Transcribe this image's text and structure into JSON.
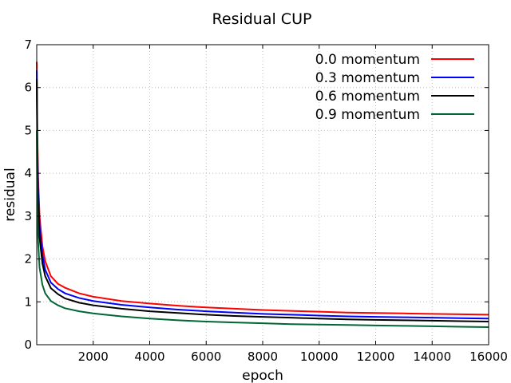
{
  "chart_data": {
    "type": "line",
    "title": "Residual CUP",
    "xlabel": "epoch",
    "ylabel": "residual",
    "xlim": [
      0,
      16000
    ],
    "ylim": [
      0,
      7
    ],
    "xticks": [
      2000,
      4000,
      6000,
      8000,
      10000,
      12000,
      14000,
      16000
    ],
    "yticks": [
      0,
      1,
      2,
      3,
      4,
      5,
      6,
      7
    ],
    "grid": true,
    "legend_position": "top-right",
    "series": [
      {
        "name": "0.0 momentum",
        "color": "#ff0000",
        "x": [
          1,
          20,
          50,
          100,
          200,
          300,
          500,
          750,
          1000,
          1500,
          2000,
          3000,
          4000,
          5000,
          6000,
          7000,
          8000,
          9000,
          10000,
          11000,
          12000,
          13000,
          14000,
          15000,
          16000
        ],
        "y": [
          6.6,
          5.0,
          3.9,
          3.0,
          2.3,
          1.95,
          1.6,
          1.42,
          1.33,
          1.2,
          1.12,
          1.02,
          0.96,
          0.91,
          0.87,
          0.84,
          0.81,
          0.79,
          0.77,
          0.75,
          0.74,
          0.73,
          0.72,
          0.71,
          0.7
        ]
      },
      {
        "name": "0.3 momentum",
        "color": "#0000ff",
        "x": [
          1,
          20,
          50,
          100,
          200,
          300,
          500,
          750,
          1000,
          1500,
          2000,
          3000,
          4000,
          5000,
          6000,
          7000,
          8000,
          9000,
          10000,
          11000,
          12000,
          13000,
          14000,
          15000,
          16000
        ],
        "y": [
          6.4,
          4.7,
          3.6,
          2.75,
          2.1,
          1.75,
          1.45,
          1.3,
          1.2,
          1.09,
          1.02,
          0.93,
          0.87,
          0.82,
          0.78,
          0.75,
          0.72,
          0.7,
          0.68,
          0.66,
          0.65,
          0.64,
          0.63,
          0.62,
          0.61
        ]
      },
      {
        "name": "0.6 momentum",
        "color": "#000000",
        "x": [
          1,
          20,
          50,
          100,
          200,
          300,
          500,
          750,
          1000,
          1500,
          2000,
          3000,
          4000,
          5000,
          6000,
          7000,
          8000,
          9000,
          10000,
          11000,
          12000,
          13000,
          14000,
          15000,
          16000
        ],
        "y": [
          6.2,
          4.4,
          3.3,
          2.5,
          1.9,
          1.6,
          1.32,
          1.18,
          1.08,
          0.98,
          0.92,
          0.84,
          0.78,
          0.74,
          0.7,
          0.67,
          0.65,
          0.63,
          0.61,
          0.59,
          0.58,
          0.57,
          0.56,
          0.55,
          0.54
        ]
      },
      {
        "name": "0.9 momentum",
        "color": "#006633",
        "x": [
          1,
          20,
          50,
          100,
          200,
          300,
          500,
          750,
          1000,
          1500,
          2000,
          3000,
          4000,
          5000,
          6000,
          7000,
          8000,
          9000,
          10000,
          11000,
          12000,
          13000,
          14000,
          15000,
          16000
        ],
        "y": [
          5.0,
          3.2,
          2.4,
          1.8,
          1.4,
          1.2,
          1.02,
          0.92,
          0.85,
          0.78,
          0.73,
          0.66,
          0.61,
          0.57,
          0.54,
          0.52,
          0.5,
          0.48,
          0.47,
          0.46,
          0.45,
          0.44,
          0.43,
          0.42,
          0.41
        ]
      }
    ]
  }
}
